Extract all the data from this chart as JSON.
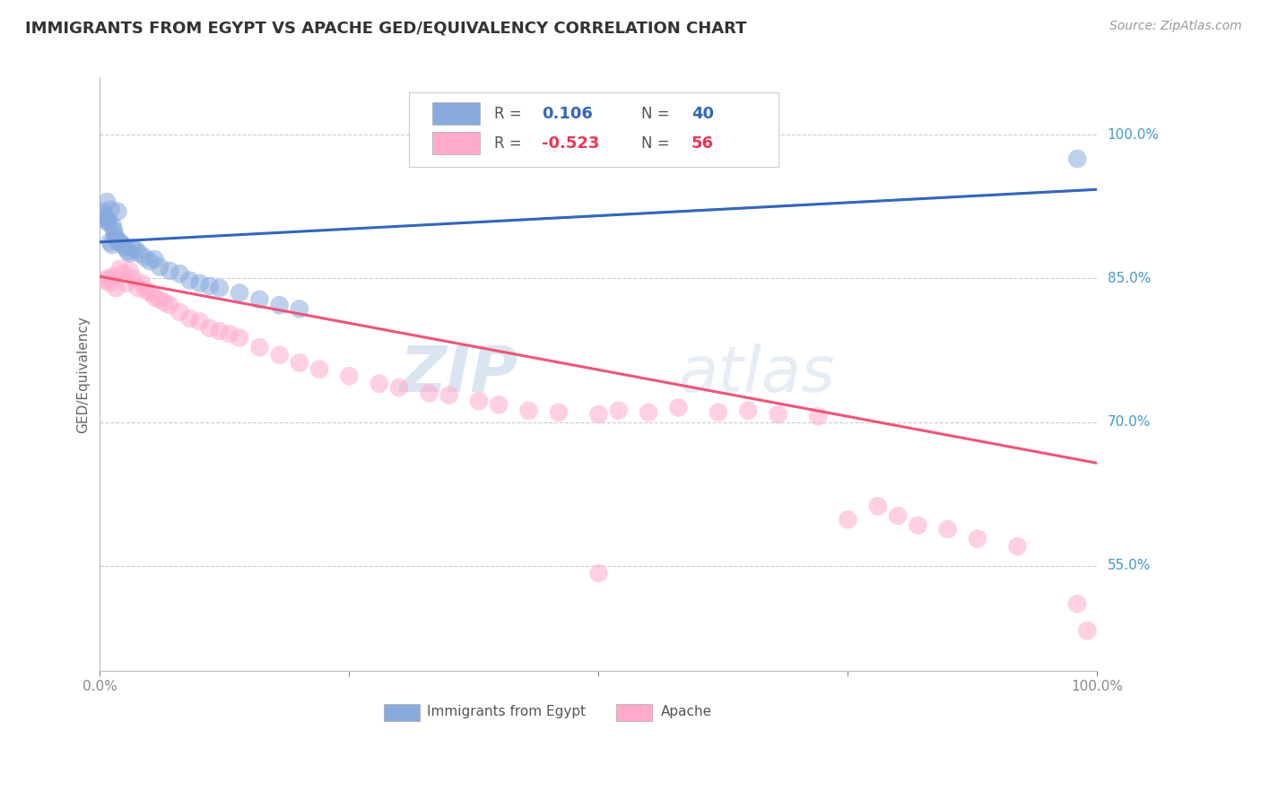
{
  "title": "IMMIGRANTS FROM EGYPT VS APACHE GED/EQUIVALENCY CORRELATION CHART",
  "source": "Source: ZipAtlas.com",
  "ylabel": "GED/Equivalency",
  "ytick_positions": [
    0.55,
    0.7,
    0.85,
    1.0
  ],
  "ytick_labels": [
    "55.0%",
    "70.0%",
    "85.0%",
    "100.0%"
  ],
  "blue_color": "#88AADD",
  "pink_color": "#FFAACC",
  "blue_line_color": "#3366BB",
  "pink_line_color": "#EE5577",
  "dashed_line_color": "#7AADDD",
  "watermark_zip": "ZIP",
  "watermark_atlas": "atlas",
  "R_blue": "0.106",
  "N_blue": "40",
  "R_pink": "-0.523",
  "N_pink": "56",
  "legend_label_blue": "Immigrants from Egypt",
  "legend_label_pink": "Apache",
  "blue_x": [
    0.3,
    0.4,
    0.5,
    0.6,
    0.7,
    0.8,
    0.9,
    1.0,
    1.1,
    1.2,
    1.3,
    1.4,
    1.5,
    1.6,
    1.7,
    1.8,
    2.0,
    2.2,
    2.4,
    2.6,
    2.8,
    3.0,
    3.3,
    3.6,
    4.0,
    4.5,
    5.0,
    5.5,
    6.0,
    7.0,
    8.0,
    9.0,
    10.0,
    11.0,
    12.0,
    14.0,
    16.0,
    18.0,
    20.0,
    98.0
  ],
  "blue_y": [
    0.92,
    0.915,
    0.913,
    0.91,
    0.93,
    0.912,
    0.908,
    0.888,
    0.922,
    0.885,
    0.905,
    0.9,
    0.895,
    0.892,
    0.89,
    0.92,
    0.888,
    0.886,
    0.884,
    0.882,
    0.878,
    0.876,
    0.882,
    0.88,
    0.876,
    0.872,
    0.868,
    0.87,
    0.862,
    0.858,
    0.855,
    0.848,
    0.845,
    0.842,
    0.84,
    0.835,
    0.828,
    0.822,
    0.818,
    0.975
  ],
  "pink_x": [
    0.5,
    0.8,
    1.0,
    1.3,
    1.6,
    2.0,
    2.3,
    2.6,
    3.0,
    3.4,
    3.8,
    4.2,
    4.6,
    5.0,
    5.5,
    6.0,
    6.5,
    7.0,
    8.0,
    9.0,
    10.0,
    11.0,
    12.0,
    13.0,
    14.0,
    16.0,
    18.0,
    20.0,
    22.0,
    25.0,
    28.0,
    30.0,
    33.0,
    35.0,
    38.0,
    40.0,
    43.0,
    46.0,
    50.0,
    52.0,
    55.0,
    58.0,
    62.0,
    65.0,
    68.0,
    72.0,
    75.0,
    78.0,
    80.0,
    82.0,
    85.0,
    88.0,
    92.0,
    50.0,
    98.0,
    99.0
  ],
  "pink_y": [
    0.848,
    0.85,
    0.845,
    0.852,
    0.84,
    0.86,
    0.855,
    0.845,
    0.858,
    0.85,
    0.84,
    0.845,
    0.838,
    0.835,
    0.83,
    0.828,
    0.825,
    0.822,
    0.815,
    0.808,
    0.805,
    0.798,
    0.795,
    0.792,
    0.788,
    0.778,
    0.77,
    0.762,
    0.755,
    0.748,
    0.74,
    0.736,
    0.73,
    0.728,
    0.722,
    0.718,
    0.712,
    0.71,
    0.708,
    0.712,
    0.71,
    0.715,
    0.71,
    0.712,
    0.708,
    0.706,
    0.598,
    0.612,
    0.602,
    0.592,
    0.588,
    0.578,
    0.57,
    0.542,
    0.51,
    0.482
  ]
}
